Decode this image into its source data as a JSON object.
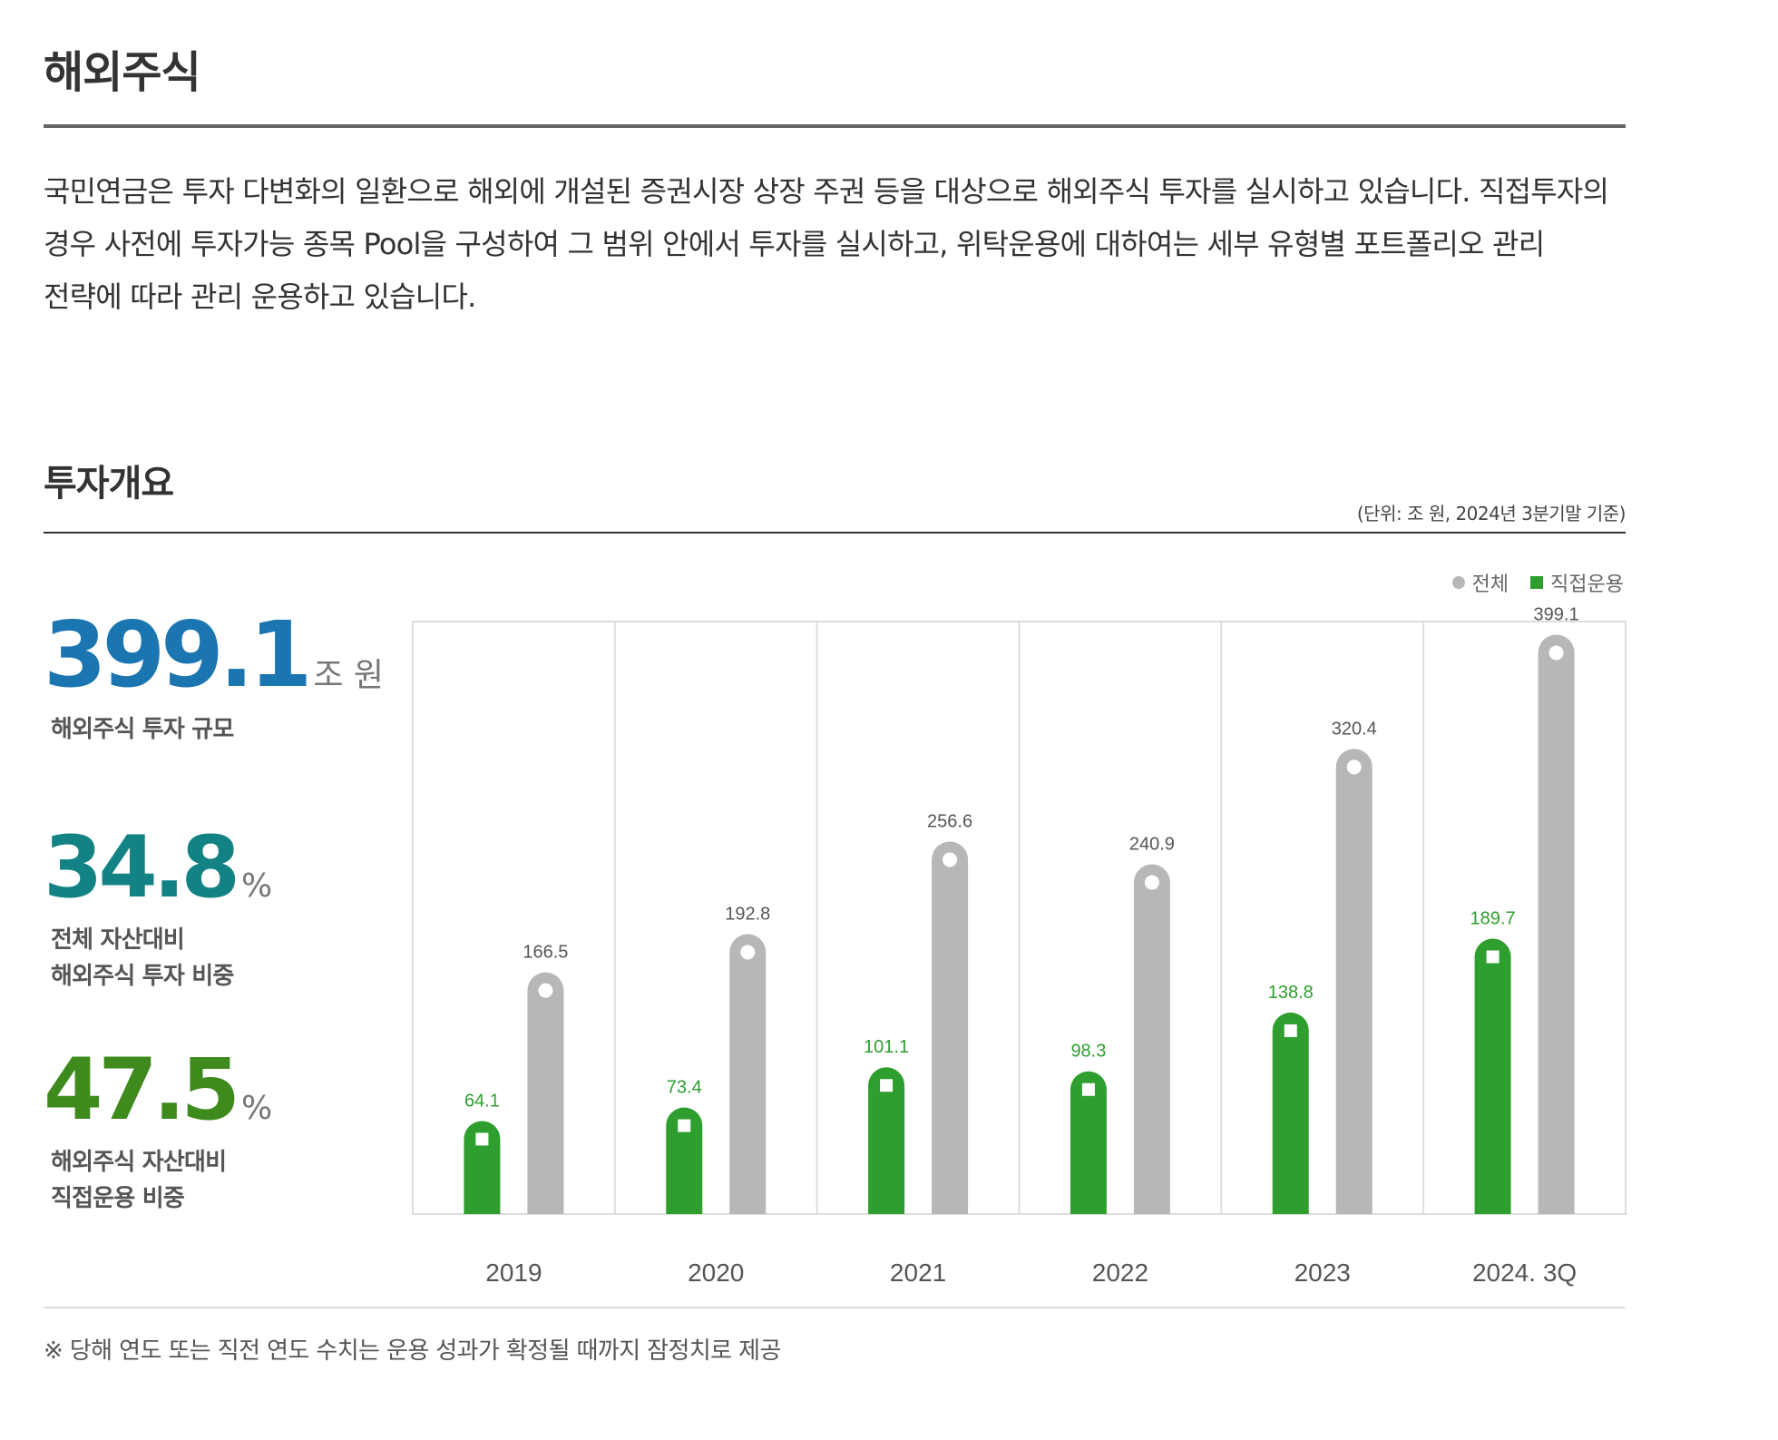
{
  "page": {
    "title": "해외주식",
    "intro": "국민연금은 투자 다변화의 일환으로 해외에 개설된 증권시장 상장 주권 등을 대상으로 해외주식 투자를 실시하고 있습니다. 직접투자의 경우 사전에 투자가능 종목 Pool을 구성하여 그 범위 안에서 투자를 실시하고, 위탁운용에 대하여는 세부 유형별 포트폴리오 관리 전략에 따라 관리 운용하고 있습니다."
  },
  "overview": {
    "title": "투자개요",
    "unit_note": "(단위: 조 원, 2024년 3분기말 기준)"
  },
  "stats": {
    "size": {
      "value": "399.1",
      "unit": "조 원",
      "label": "해외주식 투자 규모"
    },
    "share": {
      "value": "34.8",
      "unit": "%",
      "label_line1": "전체 자산대비",
      "label_line2": "해외주식 투자 비중"
    },
    "direct": {
      "value": "47.5",
      "unit": "%",
      "label_line1": "해외주식 자산대비",
      "label_line2": "직접운용 비중"
    }
  },
  "legend": {
    "total": "전체",
    "direct": "직접운용"
  },
  "colors": {
    "total": "#b7b7b7",
    "direct": "#2e9e2e",
    "total_label": "#555555",
    "direct_label": "#2e9e2e"
  },
  "chart_data": {
    "type": "bar",
    "categories": [
      "2019",
      "2020",
      "2021",
      "2022",
      "2023",
      "2024. 3Q"
    ],
    "series": [
      {
        "name": "직접운용",
        "values": [
          64.1,
          73.4,
          101.1,
          98.3,
          138.8,
          189.7
        ]
      },
      {
        "name": "전체",
        "values": [
          166.5,
          192.8,
          256.6,
          240.9,
          320.4,
          399.1
        ]
      }
    ],
    "data_labels": {
      "직접운용": [
        "64.1",
        "73.4",
        "101.1",
        "98.3",
        "138.8",
        "189.7"
      ],
      "전체": [
        "166.5",
        "192.8",
        "256.6",
        "240.9",
        "320.4",
        "399.1"
      ]
    },
    "unit": "조 원",
    "legend_position": "top-right",
    "grid": "vertical-separators"
  },
  "footnote": "※  당해 연도 또는 직전 연도 수치는 운용 성과가 확정될 때까지 잠정치로 제공"
}
